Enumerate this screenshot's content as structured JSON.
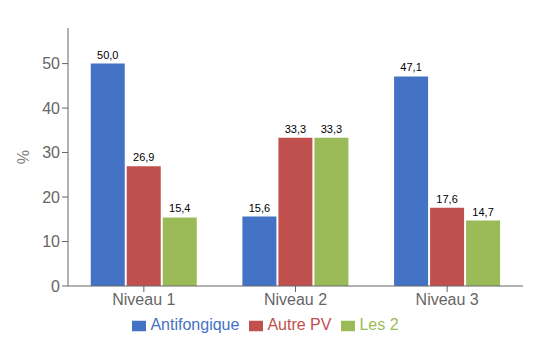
{
  "chart_data": {
    "type": "bar",
    "categories": [
      "Niveau 1",
      "Niveau 2",
      "Niveau 3"
    ],
    "series": [
      {
        "name": "Antifongique",
        "color": "#4472C4",
        "values": [
          50.0,
          15.6,
          47.1
        ],
        "value_labels": [
          "50,0",
          "15,6",
          "47,1"
        ]
      },
      {
        "name": "Autre PV",
        "color": "#C0504D",
        "values": [
          26.9,
          33.3,
          17.6
        ],
        "value_labels": [
          "26,9",
          "33,3",
          "17,6"
        ]
      },
      {
        "name": "Les 2",
        "color": "#9BBB59",
        "values": [
          15.4,
          33.3,
          14.7
        ],
        "value_labels": [
          "15,4",
          "33,3",
          "14,7"
        ]
      }
    ],
    "ylabel": "%",
    "ylim": [
      0,
      58
    ],
    "yticks": [
      0,
      10,
      20,
      30,
      40,
      50
    ],
    "grid": false,
    "legend": "bottom",
    "data_labels": true
  }
}
